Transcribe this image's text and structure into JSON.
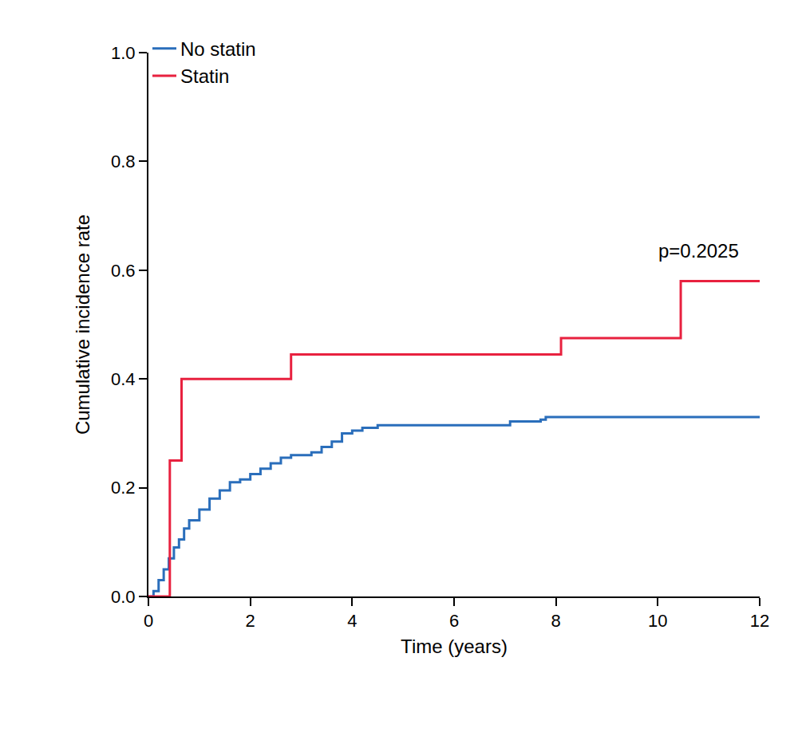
{
  "chart_data": {
    "type": "line",
    "x_label": "Time (years)",
    "y_label": "Cumulative incidence rate",
    "xlim": [
      0,
      12
    ],
    "xticks": [
      0,
      2,
      4,
      6,
      8,
      10,
      12
    ],
    "ylim": [
      0,
      1
    ],
    "yticks": [
      {
        "value": 0,
        "label": "0.0"
      },
      {
        "value": 0.2,
        "label": "0.2"
      },
      {
        "value": 0.4,
        "label": "0.4"
      },
      {
        "value": 0.6,
        "label": "0.6"
      },
      {
        "value": 0.8,
        "label": "0.8"
      },
      {
        "value": 1,
        "label": "1.0"
      }
    ],
    "grid": false,
    "legend": "top left",
    "line_style": "step",
    "annotations": [
      {
        "text": "p=0.2025",
        "x": 10.8,
        "y": 0.635
      }
    ],
    "series": [
      {
        "name": "No statin",
        "color": "#2a6ebb",
        "x": [
          0,
          0.1,
          0.2,
          0.3,
          0.4,
          0.5,
          0.6,
          0.7,
          0.8,
          1.0,
          1.2,
          1.4,
          1.6,
          1.8,
          2.0,
          2.2,
          2.4,
          2.6,
          2.8,
          3.2,
          3.4,
          3.6,
          3.8,
          4.0,
          4.2,
          4.5,
          7.0,
          7.1,
          7.7,
          7.8,
          12
        ],
        "values": [
          0,
          0.01,
          0.03,
          0.05,
          0.07,
          0.09,
          0.105,
          0.125,
          0.14,
          0.16,
          0.18,
          0.195,
          0.21,
          0.215,
          0.225,
          0.235,
          0.245,
          0.255,
          0.26,
          0.265,
          0.275,
          0.285,
          0.3,
          0.305,
          0.31,
          0.315,
          0.315,
          0.322,
          0.325,
          0.33,
          0.33
        ]
      },
      {
        "name": "Statin",
        "color": "#e8213f",
        "x": [
          0,
          0.42,
          0.65,
          2.8,
          8.1,
          10.45,
          12
        ],
        "values": [
          0,
          0.25,
          0.4,
          0.445,
          0.475,
          0.58,
          0.58
        ]
      }
    ]
  }
}
